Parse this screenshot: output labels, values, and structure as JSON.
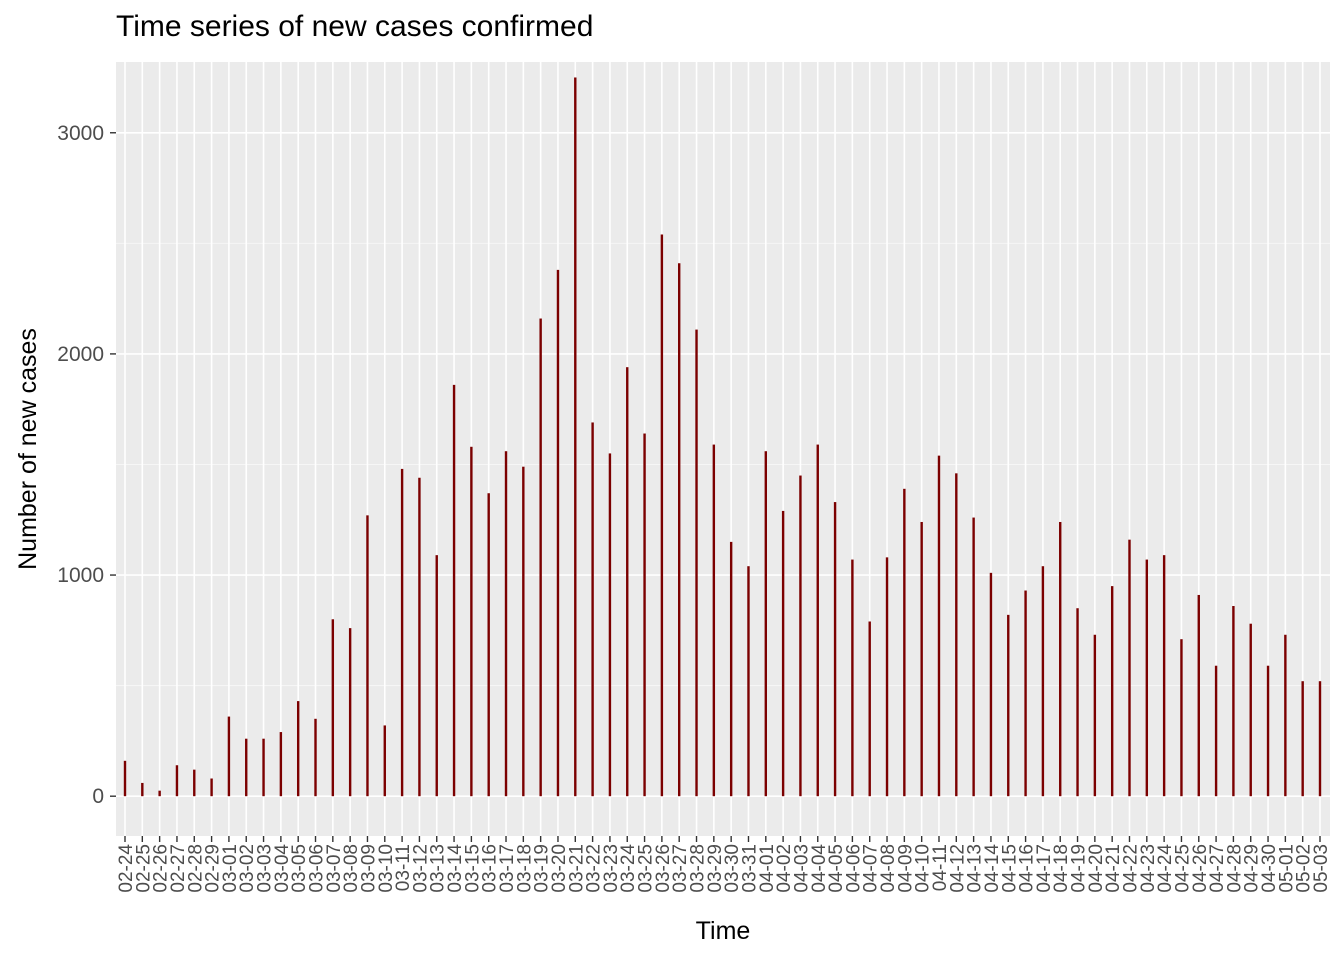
{
  "chart_data": {
    "type": "bar",
    "title": "Time series of new cases confirmed",
    "xlabel": "Time",
    "ylabel": "Number of new cases",
    "ylim": [
      -180,
      3320
    ],
    "yticks": [
      0,
      1000,
      2000,
      3000
    ],
    "grid": true,
    "categories": [
      "02-24",
      "02-25",
      "02-26",
      "02-27",
      "02-28",
      "02-29",
      "03-01",
      "03-02",
      "03-03",
      "03-04",
      "03-05",
      "03-06",
      "03-07",
      "03-08",
      "03-09",
      "03-10",
      "03-11",
      "03-12",
      "03-13",
      "03-14",
      "03-15",
      "03-16",
      "03-17",
      "03-18",
      "03-19",
      "03-20",
      "03-21",
      "03-22",
      "03-23",
      "03-24",
      "03-25",
      "03-26",
      "03-27",
      "03-28",
      "03-29",
      "03-30",
      "03-31",
      "04-01",
      "04-02",
      "04-03",
      "04-04",
      "04-05",
      "04-06",
      "04-07",
      "04-08",
      "04-09",
      "04-10",
      "04-11",
      "04-12",
      "04-13",
      "04-14",
      "04-15",
      "04-16",
      "04-17",
      "04-18",
      "04-19",
      "04-20",
      "04-21",
      "04-22",
      "04-23",
      "04-24",
      "04-25",
      "04-26",
      "04-27",
      "04-28",
      "04-29",
      "04-30",
      "05-01",
      "05-02",
      "05-03"
    ],
    "values": [
      160,
      60,
      25,
      140,
      120,
      80,
      360,
      260,
      260,
      290,
      430,
      350,
      800,
      760,
      1270,
      320,
      1480,
      1440,
      1090,
      1860,
      1580,
      1370,
      1560,
      1490,
      2160,
      2380,
      3250,
      1690,
      1550,
      1940,
      1640,
      2540,
      2410,
      2110,
      1590,
      1150,
      1040,
      1560,
      1290,
      1450,
      1590,
      1330,
      1070,
      790,
      1080,
      1390,
      1240,
      1540,
      1460,
      1260,
      1010,
      820,
      930,
      1040,
      1240,
      850,
      730,
      950,
      1160,
      1070,
      1090,
      710,
      910,
      590,
      860,
      780,
      590,
      730,
      520,
      520
    ],
    "colors": {
      "bar": "#7b0000",
      "panel": "#ebebeb",
      "grid_major": "#ffffff",
      "tick_text": "#4d4d4d"
    }
  }
}
